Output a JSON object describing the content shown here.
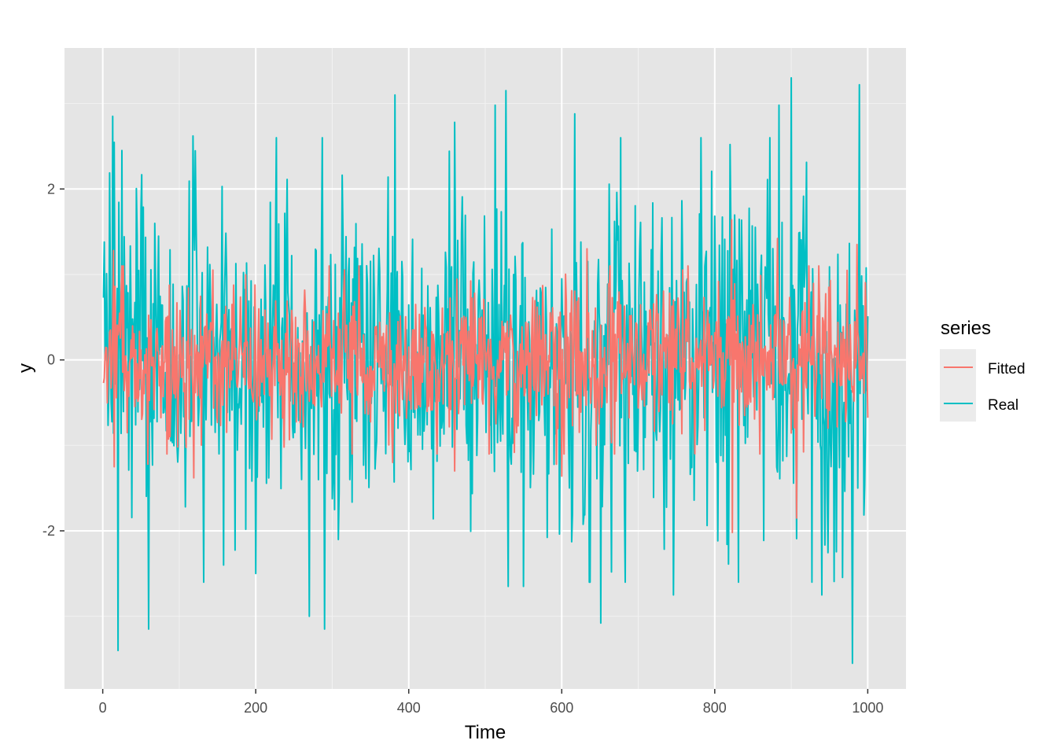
{
  "chart_data": {
    "type": "line",
    "xlabel": "Time",
    "ylabel": "y",
    "xlim": [
      -50,
      1050
    ],
    "ylim": [
      -3.85,
      3.65
    ],
    "x_ticks": [
      0,
      200,
      400,
      600,
      800,
      1000
    ],
    "x_tick_labels": [
      "0",
      "200",
      "400",
      "600",
      "800",
      "1000"
    ],
    "y_ticks": [
      -2,
      0,
      2
    ],
    "y_tick_labels": [
      "-2",
      "0",
      "2"
    ],
    "grid": true,
    "background": "#e5e5e5",
    "legend": {
      "title": "series",
      "placement": "right",
      "entries": [
        "Fitted",
        "Real"
      ]
    },
    "series": [
      {
        "name": "Fitted",
        "color": "#f8766d",
        "x_range": [
          1,
          1000
        ],
        "std": 0.45,
        "highlights": [
          {
            "x": 14,
            "y": 1.28
          },
          {
            "x": 15,
            "y": -1.25
          },
          {
            "x": 59,
            "y": -1.22
          },
          {
            "x": 119,
            "y": -1.38
          },
          {
            "x": 237,
            "y": -1.02
          },
          {
            "x": 379,
            "y": -1.2
          },
          {
            "x": 460,
            "y": -1.3
          },
          {
            "x": 593,
            "y": -1.22
          },
          {
            "x": 600,
            "y": -1.36
          },
          {
            "x": 633,
            "y": 1.3
          },
          {
            "x": 822,
            "y": 1.64
          },
          {
            "x": 823,
            "y": -2.02
          },
          {
            "x": 882,
            "y": 1.42
          },
          {
            "x": 907,
            "y": -1.85
          },
          {
            "x": 986,
            "y": 1.35
          }
        ]
      },
      {
        "name": "Real",
        "color": "#00bfc4",
        "x_range": [
          1,
          1000
        ],
        "std": 1.0,
        "highlights": [
          {
            "x": 2,
            "y": 1.38
          },
          {
            "x": 13,
            "y": 2.85
          },
          {
            "x": 20,
            "y": -3.4
          },
          {
            "x": 25,
            "y": 2.45
          },
          {
            "x": 60,
            "y": -3.15
          },
          {
            "x": 118,
            "y": 2.62
          },
          {
            "x": 200,
            "y": -2.5
          },
          {
            "x": 270,
            "y": -3.0
          },
          {
            "x": 287,
            "y": 2.6
          },
          {
            "x": 290,
            "y": -3.15
          },
          {
            "x": 382,
            "y": 3.1
          },
          {
            "x": 460,
            "y": 2.78
          },
          {
            "x": 513,
            "y": 2.98
          },
          {
            "x": 527,
            "y": 3.15
          },
          {
            "x": 530,
            "y": -2.65
          },
          {
            "x": 550,
            "y": -2.65
          },
          {
            "x": 617,
            "y": 2.88
          },
          {
            "x": 651,
            "y": -3.08
          },
          {
            "x": 746,
            "y": -2.75
          },
          {
            "x": 820,
            "y": 2.52
          },
          {
            "x": 884,
            "y": 2.98
          },
          {
            "x": 900,
            "y": 3.3
          },
          {
            "x": 940,
            "y": -2.75
          },
          {
            "x": 980,
            "y": -3.55
          },
          {
            "x": 989,
            "y": 3.22
          }
        ]
      }
    ]
  }
}
